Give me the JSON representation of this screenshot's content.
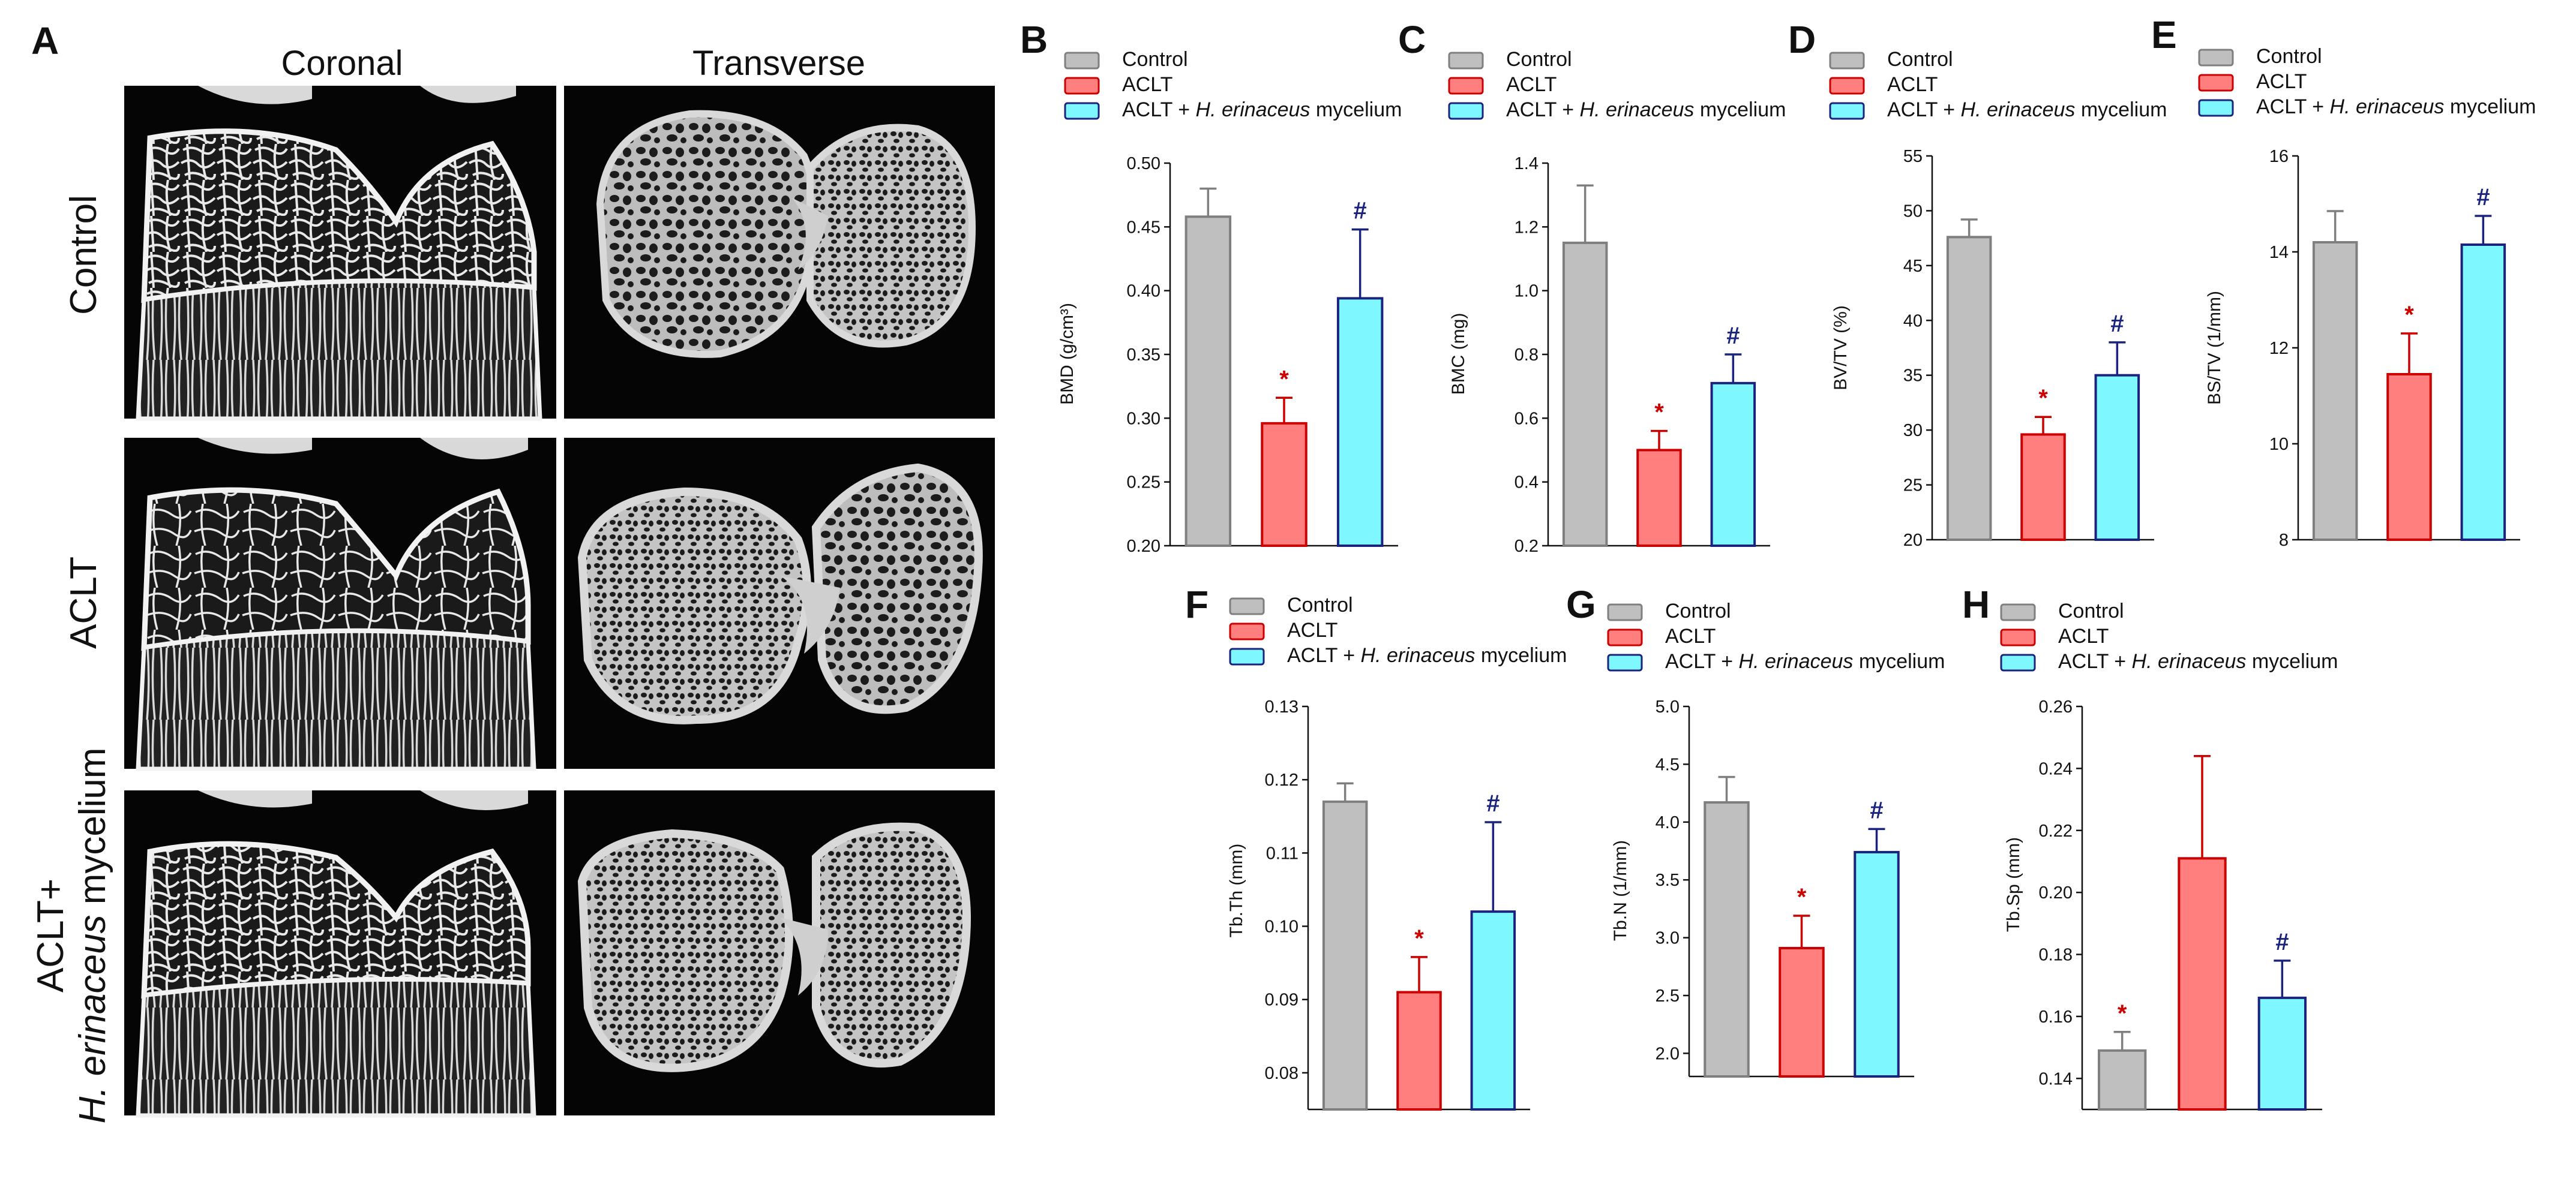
{
  "panel_a": {
    "letter": "A",
    "columns": [
      "Coronal",
      "Transverse"
    ],
    "rows": [
      {
        "label": "Control"
      },
      {
        "label": "ACLT"
      },
      {
        "label_line1": "ACLT+",
        "label_line2_italic": "H. erinaceus",
        "label_line2_rest": " mycelium"
      }
    ]
  },
  "legend": {
    "items": [
      {
        "name": "Control",
        "color": "#bfbfbf",
        "border": "#7f7f7f"
      },
      {
        "name": "ACLT",
        "color": "#ff7f7f",
        "border": "#cc0000"
      },
      {
        "name_prefix": "ACLT + ",
        "name_italic": "H. erinaceus",
        "name_suffix": " mycelium",
        "color": "#7ff7ff",
        "border": "#1a237e"
      }
    ]
  },
  "markers": {
    "vs_control": "*",
    "vs_aclt": "#",
    "vs_control_color": "#cc0000",
    "vs_aclt_color": "#1a237e"
  },
  "chart_data": [
    {
      "panel": "B",
      "type": "bar",
      "ylabel": "BMD (g/cm³)",
      "ylim": [
        0.2,
        0.5
      ],
      "yticks": [
        "0.20",
        "0.25",
        "0.30",
        "0.35",
        "0.40",
        "0.45",
        "0.50"
      ],
      "categories": [
        "Control",
        "ACLT",
        "ACLT + H. erinaceus mycelium"
      ],
      "values": [
        0.458,
        0.296,
        0.394
      ],
      "errors": [
        0.022,
        0.02,
        0.054
      ],
      "sig": [
        "",
        "*",
        "#"
      ]
    },
    {
      "panel": "C",
      "type": "bar",
      "ylabel": "BMC (mg)",
      "ylim": [
        0.2,
        1.4
      ],
      "yticks": [
        "0.2",
        "0.4",
        "0.6",
        "0.8",
        "1.0",
        "1.2",
        "1.4"
      ],
      "categories": [
        "Control",
        "ACLT",
        "ACLT + H. erinaceus mycelium"
      ],
      "values": [
        1.15,
        0.5,
        0.71
      ],
      "errors": [
        0.18,
        0.06,
        0.09
      ],
      "sig": [
        "",
        "*",
        "#"
      ]
    },
    {
      "panel": "D",
      "type": "bar",
      "ylabel": "BV/TV (%)",
      "ylim": [
        20,
        55
      ],
      "yticks": [
        "20",
        "25",
        "30",
        "35",
        "40",
        "45",
        "50",
        "55"
      ],
      "categories": [
        "Control",
        "ACLT",
        "ACLT + H. erinaceus mycelium"
      ],
      "values": [
        47.6,
        29.6,
        35.0
      ],
      "errors": [
        1.6,
        1.6,
        3.0
      ],
      "sig": [
        "",
        "*",
        "#"
      ]
    },
    {
      "panel": "E",
      "type": "bar",
      "ylabel": "BS/TV (1/mm)",
      "ylim": [
        8,
        16
      ],
      "yticks": [
        "8",
        "10",
        "12",
        "14",
        "16"
      ],
      "categories": [
        "Control",
        "ACLT",
        "ACLT + H. erinaceus mycelium"
      ],
      "values": [
        14.2,
        11.45,
        14.15
      ],
      "errors": [
        0.65,
        0.85,
        0.6
      ],
      "sig": [
        "",
        "*",
        "#"
      ]
    },
    {
      "panel": "F",
      "type": "bar",
      "ylabel": "Tb.Th (mm)",
      "ylim": [
        0.075,
        0.13
      ],
      "yticks": [
        "0.08",
        "0.09",
        "0.10",
        "0.11",
        "0.12",
        "0.13"
      ],
      "categories": [
        "Control",
        "ACLT",
        "ACLT + H. erinaceus mycelium"
      ],
      "values": [
        0.117,
        0.091,
        0.102
      ],
      "errors": [
        0.0025,
        0.0048,
        0.0122
      ],
      "sig": [
        "",
        "*",
        "#"
      ]
    },
    {
      "panel": "G",
      "type": "bar",
      "ylabel": "Tb.N (1/mm)",
      "ylim": [
        1.8,
        5.0
      ],
      "yticks": [
        "2.0",
        "2.5",
        "3.0",
        "3.5",
        "4.0",
        "4.5",
        "5.0"
      ],
      "categories": [
        "Control",
        "ACLT",
        "ACLT + H. erinaceus mycelium"
      ],
      "values": [
        4.17,
        2.91,
        3.74
      ],
      "errors": [
        0.22,
        0.28,
        0.2
      ],
      "sig": [
        "",
        "*",
        "#"
      ]
    },
    {
      "panel": "H",
      "type": "bar",
      "ylabel": "Tb.Sp (mm)",
      "ylim": [
        0.13,
        0.26
      ],
      "yticks": [
        "0.14",
        "0.16",
        "0.18",
        "0.20",
        "0.22",
        "0.24",
        "0.26"
      ],
      "categories": [
        "Control",
        "ACLT",
        "ACLT + H. erinaceus mycelium"
      ],
      "values": [
        0.149,
        0.211,
        0.166
      ],
      "errors": [
        0.006,
        0.033,
        0.012
      ],
      "sig": [
        "*",
        "",
        "#"
      ]
    }
  ]
}
